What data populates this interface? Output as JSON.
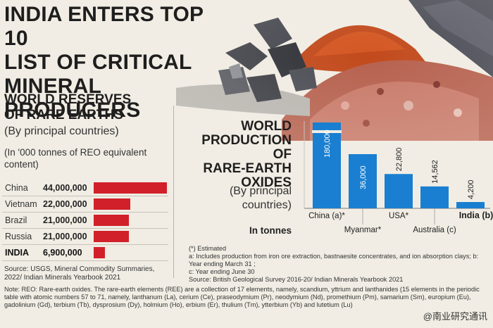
{
  "headline": [
    "INDIA ENTERS TOP 10",
    "LIST OF CRITICAL",
    "MINERAL PRODUCERS"
  ],
  "colors": {
    "bar_red": "#d1202a",
    "bar_blue": "#1a7fd0",
    "background": "#f1ede4"
  },
  "reserves": {
    "title": [
      "WORLD RESERVES",
      "OF RARE EARTHS"
    ],
    "subtitle": "(By principal countries)",
    "note": "(In '000 tonnes of REO equivalent content)",
    "source": "Source: USGS, Mineral Commodity Summaries, 2022/ Indian Minerals Yearbook 2021"
  },
  "production": {
    "title": [
      "WORLD",
      "PRODUCTION OF",
      "RARE-EARTH",
      "OXIDES"
    ],
    "subtitle": [
      "(By principal",
      "countries)"
    ],
    "unit": "In tonnes",
    "notes": [
      "(*) Estimated",
      "a: Includes production from iron ore extraction, bastnaesite concentrates, and ion absorption clays; b: Year ending March 31 ;",
      "c: Year ending June 30",
      "Source: British Geological Survey 2016-20/ Indian Minerals Yearbook 2021"
    ]
  },
  "footnote": "Note: REO: Rare-earth oxides. The rare-earth elements (REE) are a collection of 17 elements, namely, scandium, yttrium and lanthanides (15 elements in the periodic table with atomic numbers 57 to 71, namely, lanthanum (La), cerium (Ce), praseodymium (Pr), neodymium (Nd), promethium (Pm), samarium (Sm), europium (Eu), gadolinium (Gd), terbium (Tb), dysprosium (Dy), holmium (Ho), erbium (Er), thulium (Tm), ytterbium (Yb) and lutetium (Lu)",
  "watermark": "@南业研究通讯",
  "chart_data": [
    {
      "type": "bar",
      "orientation": "horizontal",
      "categories": [
        "China",
        "Vietnam",
        "Brazil",
        "Russia",
        "INDIA"
      ],
      "values": [
        44000000,
        22000000,
        21000000,
        21000000,
        6900000
      ],
      "value_labels": [
        "44,000,000",
        "22,000,000",
        "21,000,000",
        "21,000,000",
        "6,900,000"
      ],
      "title": "WORLD RESERVES OF RARE EARTHS",
      "xlim": [
        0,
        44000000
      ]
    },
    {
      "type": "bar",
      "categories": [
        "China (a)*",
        "Myanmar*",
        "USA*",
        "Australia (c)",
        "India (b)"
      ],
      "values": [
        180000,
        36000,
        22800,
        14562,
        4200
      ],
      "value_labels": [
        "180,000",
        "36,000",
        "22,800",
        "14,562",
        "4,200"
      ],
      "title": "WORLD PRODUCTION OF RARE-EARTH OXIDES",
      "ylabel": "In tonnes",
      "axis_break": true
    }
  ]
}
